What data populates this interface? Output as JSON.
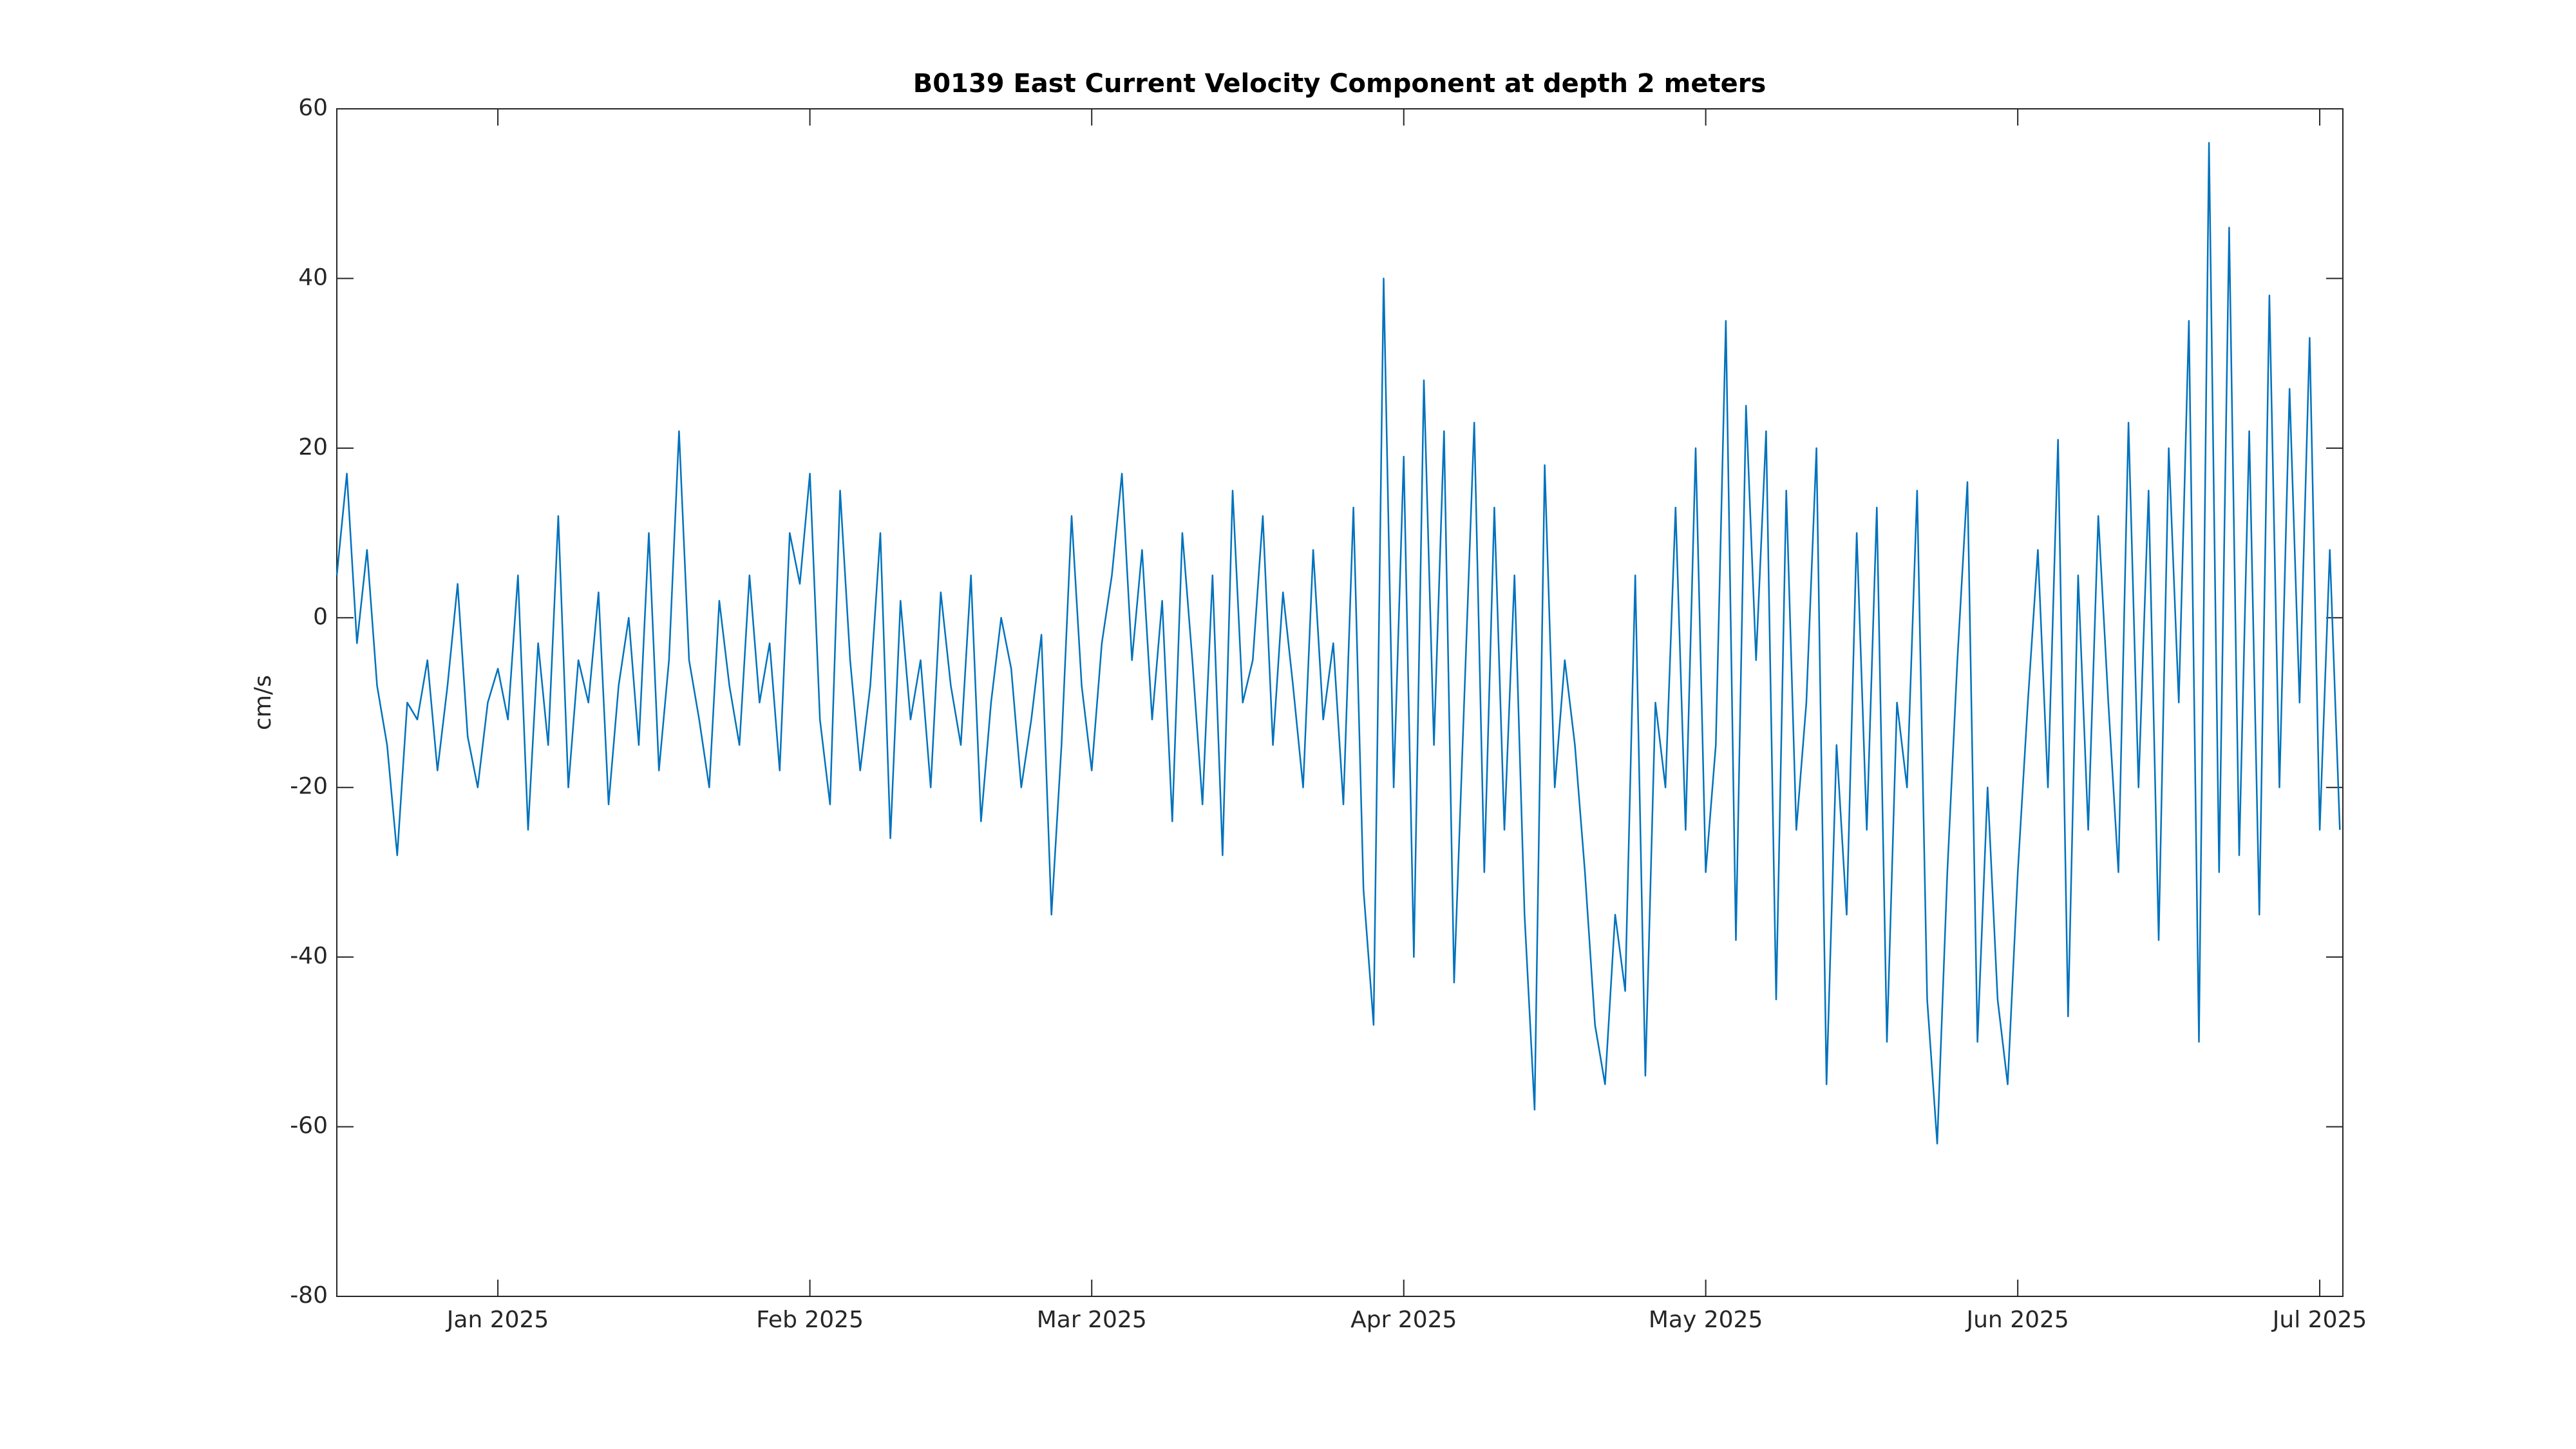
{
  "chart_data": {
    "type": "line",
    "title": "B0139 East Current Velocity Component at depth 2 meters",
    "ylabel": "cm/s",
    "xlim": [
      -16,
      183.3
    ],
    "xticks": [
      {
        "value": 0,
        "label": "Jan 2025"
      },
      {
        "value": 31,
        "label": "Feb 2025"
      },
      {
        "value": 59,
        "label": "Mar 2025"
      },
      {
        "value": 90,
        "label": "Apr 2025"
      },
      {
        "value": 120,
        "label": "May 2025"
      },
      {
        "value": 151,
        "label": "Jun 2025"
      },
      {
        "value": 181,
        "label": "Jul 2025"
      }
    ],
    "ylim": [
      -80,
      60
    ],
    "yticks": [
      -80,
      -60,
      -40,
      -20,
      0,
      20,
      40,
      60
    ],
    "x": [
      -16,
      -15,
      -14,
      -13,
      -12,
      -11,
      -10,
      -9,
      -8,
      -7,
      -6,
      -5,
      -4,
      -3,
      -2,
      -1,
      0,
      1,
      2,
      3,
      4,
      5,
      6,
      7,
      8,
      9,
      10,
      11,
      12,
      13,
      14,
      15,
      16,
      17,
      18,
      19,
      20,
      21,
      22,
      23,
      24,
      25,
      26,
      27,
      28,
      29,
      30,
      31,
      32,
      33,
      34,
      35,
      36,
      37,
      38,
      39,
      40,
      41,
      42,
      43,
      44,
      45,
      46,
      47,
      48,
      49,
      50,
      51,
      52,
      53,
      54,
      55,
      56,
      57,
      58,
      59,
      60,
      61,
      62,
      63,
      64,
      65,
      66,
      67,
      68,
      69,
      70,
      71,
      72,
      73,
      74,
      75,
      76,
      77,
      78,
      79,
      80,
      81,
      82,
      83,
      84,
      85,
      86,
      87,
      88,
      89,
      90,
      91,
      92,
      93,
      94,
      95,
      96,
      97,
      98,
      99,
      100,
      101,
      102,
      103,
      104,
      105,
      106,
      107,
      108,
      109,
      110,
      111,
      112,
      113,
      114,
      115,
      116,
      117,
      118,
      119,
      120,
      121,
      122,
      123,
      124,
      125,
      126,
      127,
      128,
      129,
      130,
      131,
      132,
      133,
      134,
      135,
      136,
      137,
      138,
      139,
      140,
      141,
      142,
      143,
      144,
      145,
      146,
      147,
      148,
      149,
      150,
      151,
      152,
      153,
      154,
      155,
      156,
      157,
      158,
      159,
      160,
      161,
      162,
      163,
      164,
      165,
      166,
      167,
      168,
      169,
      170,
      171,
      172,
      173,
      174,
      175,
      176,
      177,
      178,
      179,
      180,
      181,
      182,
      183
    ],
    "series": [
      {
        "color": "#0072bd",
        "values": [
          5,
          17,
          -3,
          8,
          -8,
          -15,
          -28,
          -10,
          -12,
          -5,
          -18,
          -8,
          4,
          -14,
          -20,
          -10,
          -6,
          -12,
          5,
          -25,
          -3,
          -15,
          12,
          -20,
          -5,
          -10,
          3,
          -22,
          -8,
          0,
          -15,
          10,
          -18,
          -5,
          22,
          -5,
          -12,
          -20,
          2,
          -8,
          -15,
          5,
          -10,
          -3,
          -18,
          10,
          4,
          17,
          -12,
          -22,
          15,
          -5,
          -18,
          -8,
          10,
          -26,
          2,
          -12,
          -5,
          -20,
          3,
          -8,
          -15,
          5,
          -24,
          -10,
          0,
          -6,
          -20,
          -12,
          -2,
          -35,
          -15,
          12,
          -8,
          -18,
          -3,
          5,
          17,
          -5,
          8,
          -12,
          2,
          -24,
          10,
          -5,
          -22,
          5,
          -28,
          15,
          -10,
          -5,
          12,
          -15,
          3,
          -8,
          -20,
          8,
          -12,
          -3,
          -22,
          13,
          -32,
          -48,
          40,
          -20,
          19,
          -40,
          28,
          -15,
          22,
          -43,
          -10,
          23,
          -30,
          13,
          -25,
          5,
          -35,
          -58,
          18,
          -20,
          -5,
          -15,
          -30,
          -48,
          -55,
          -35,
          -44,
          5,
          -54,
          -10,
          -20,
          13,
          -25,
          20,
          -30,
          -15,
          35,
          -38,
          25,
          -5,
          22,
          -45,
          15,
          -25,
          -10,
          20,
          -55,
          -15,
          -35,
          10,
          -25,
          13,
          -50,
          -10,
          -20,
          15,
          -45,
          -62,
          -30,
          -5,
          16,
          -50,
          -20,
          -45,
          -55,
          -30,
          -10,
          8,
          -20,
          21,
          -47,
          5,
          -25,
          12,
          -10,
          -30,
          23,
          -20,
          15,
          -38,
          20,
          -10,
          35,
          -50,
          56,
          -30,
          46,
          -28,
          22,
          -35,
          38,
          -20,
          27,
          -10,
          33,
          -25,
          8,
          -25
        ]
      }
    ]
  }
}
